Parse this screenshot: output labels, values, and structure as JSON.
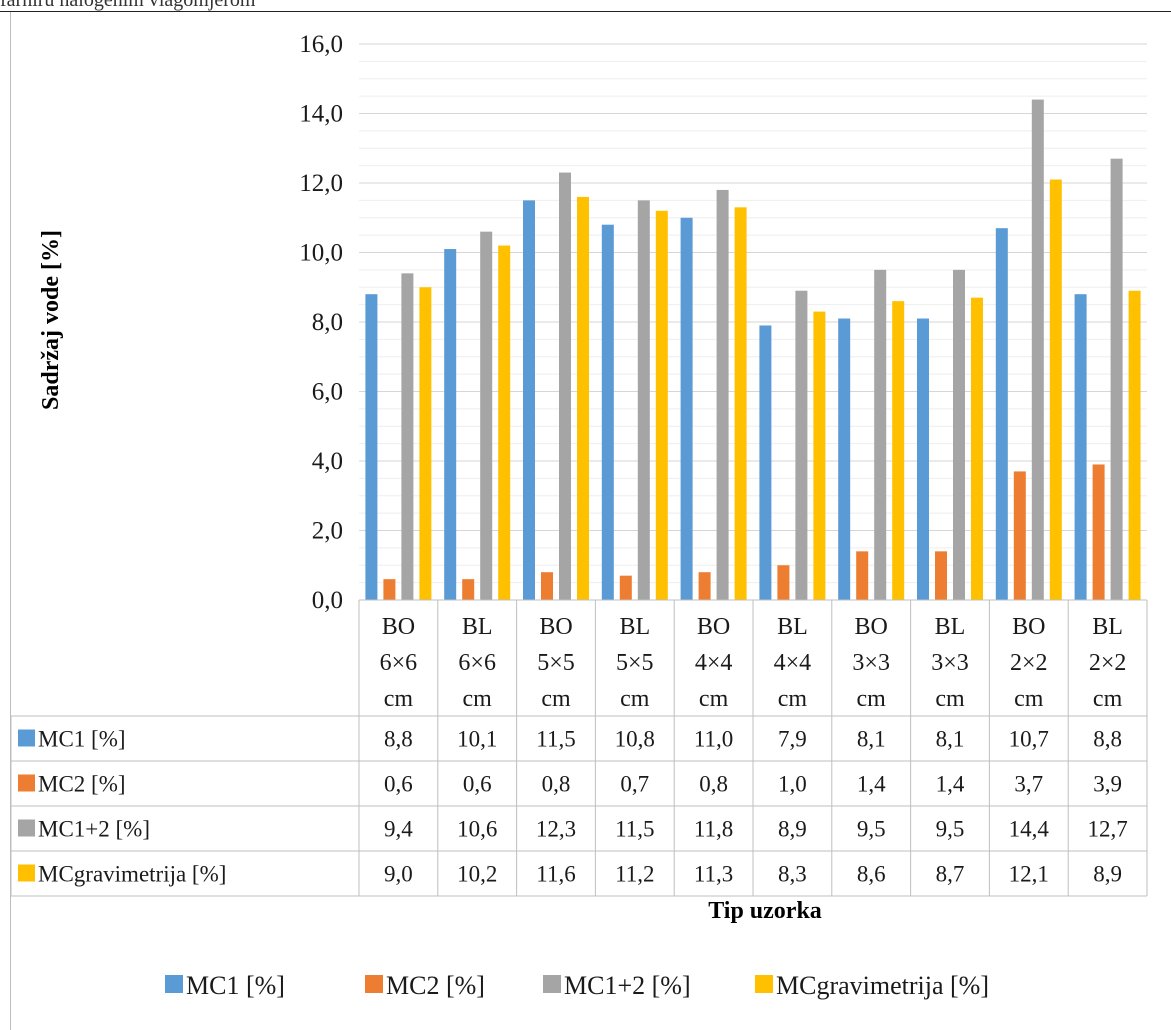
{
  "header": {
    "caption": "farniru halogenim vlagomjerom"
  },
  "chart_data": {
    "type": "bar",
    "xlabel": "Tip uzorka",
    "ylabel": "Sadržaj vode [%]",
    "ylim": [
      0,
      16
    ],
    "y_ticks": [
      "0,0",
      "2,0",
      "4,0",
      "6,0",
      "8,0",
      "10,0",
      "12,0",
      "14,0",
      "16,0"
    ],
    "y_tick_values": [
      0,
      2,
      4,
      6,
      8,
      10,
      12,
      14,
      16
    ],
    "grid": true,
    "legend": "bottom",
    "data_table": true,
    "categories": [
      [
        "BO",
        "6×6",
        "cm"
      ],
      [
        "BL",
        "6×6",
        "cm"
      ],
      [
        "BO",
        "5×5",
        "cm"
      ],
      [
        "BL",
        "5×5",
        "cm"
      ],
      [
        "BO",
        "4×4",
        "cm"
      ],
      [
        "BL",
        "4×4",
        "cm"
      ],
      [
        "BO",
        "3×3",
        "cm"
      ],
      [
        "BL",
        "3×3",
        "cm"
      ],
      [
        "BO",
        "2×2",
        "cm"
      ],
      [
        "BL",
        "2×2",
        "cm"
      ]
    ],
    "series": [
      {
        "name": "MC1 [%]",
        "color": "#5b9bd5",
        "values": [
          8.8,
          10.1,
          11.5,
          10.8,
          11.0,
          7.9,
          8.1,
          8.1,
          10.7,
          8.8
        ],
        "labels": [
          "8,8",
          "10,1",
          "11,5",
          "10,8",
          "11,0",
          "7,9",
          "8,1",
          "8,1",
          "10,7",
          "8,8"
        ]
      },
      {
        "name": "MC2 [%]",
        "color": "#ed7d31",
        "values": [
          0.6,
          0.6,
          0.8,
          0.7,
          0.8,
          1.0,
          1.4,
          1.4,
          3.7,
          3.9
        ],
        "labels": [
          "0,6",
          "0,6",
          "0,8",
          "0,7",
          "0,8",
          "1,0",
          "1,4",
          "1,4",
          "3,7",
          "3,9"
        ]
      },
      {
        "name": "MC1+2 [%]",
        "color": "#a5a5a5",
        "values": [
          9.4,
          10.6,
          12.3,
          11.5,
          11.8,
          8.9,
          9.5,
          9.5,
          14.4,
          12.7
        ],
        "labels": [
          "9,4",
          "10,6",
          "12,3",
          "11,5",
          "11,8",
          "8,9",
          "9,5",
          "9,5",
          "14,4",
          "12,7"
        ]
      },
      {
        "name": "MCgravimetrija [%]",
        "color": "#ffc000",
        "values": [
          9.0,
          10.2,
          11.6,
          11.2,
          11.3,
          8.3,
          8.6,
          8.7,
          12.1,
          8.9
        ],
        "labels": [
          "9,0",
          "10,2",
          "11,6",
          "11,2",
          "11,3",
          "8,3",
          "8,6",
          "8,7",
          "12,1",
          "8,9"
        ]
      }
    ]
  }
}
